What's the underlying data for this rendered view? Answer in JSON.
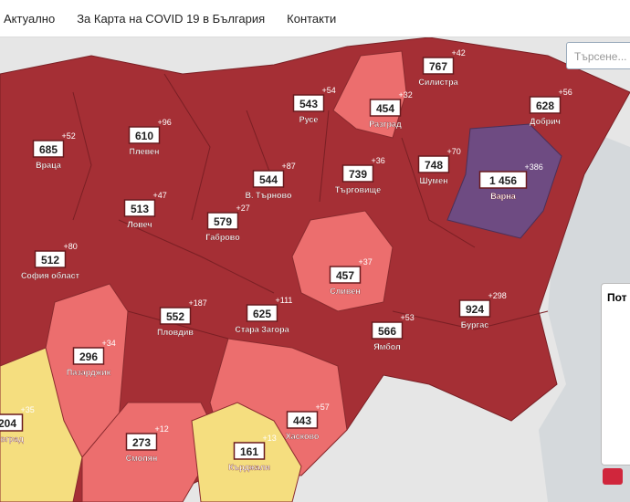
{
  "nav": {
    "items": [
      "Актуално",
      "За Карта на COVID 19 в България",
      "Контакти"
    ]
  },
  "search": {
    "placeholder": "Търсене..."
  },
  "panel": {
    "title": "Пот"
  },
  "regions": [
    {
      "name": "Силистра",
      "value": "767",
      "delta": "+42"
    },
    {
      "name": "Русе",
      "value": "543",
      "delta": "+54"
    },
    {
      "name": "Разград",
      "value": "454",
      "delta": "+32"
    },
    {
      "name": "Добрич",
      "value": "628",
      "delta": "+56"
    },
    {
      "name": "Враца",
      "value": "685",
      "delta": "+52"
    },
    {
      "name": "Плевен",
      "value": "610",
      "delta": "+96"
    },
    {
      "name": "В. Търново",
      "value": "544",
      "delta": "+87"
    },
    {
      "name": "Търговище",
      "value": "739",
      "delta": "+36"
    },
    {
      "name": "Шумен",
      "value": "748",
      "delta": "+70"
    },
    {
      "name": "Варна",
      "value": "1 456",
      "delta": "+386"
    },
    {
      "name": "Ловеч",
      "value": "513",
      "delta": "+47"
    },
    {
      "name": "Габрово",
      "value": "579",
      "delta": "+27"
    },
    {
      "name": "София област",
      "value": "512",
      "delta": "+80"
    },
    {
      "name": "Сливен",
      "value": "457",
      "delta": "+37"
    },
    {
      "name": "Бургас",
      "value": "924",
      "delta": "+298"
    },
    {
      "name": "Стара Загора",
      "value": "625",
      "delta": "+111"
    },
    {
      "name": "Пловдив",
      "value": "552",
      "delta": "+187"
    },
    {
      "name": "Ямбол",
      "value": "566",
      "delta": "+53"
    },
    {
      "name": "Пазарджик",
      "value": "296",
      "delta": "+34"
    },
    {
      "name": "Хасково",
      "value": "443",
      "delta": "+57"
    },
    {
      "name": "Смолян",
      "value": "273",
      "delta": "+12"
    },
    {
      "name": "Кърджали",
      "value": "161",
      "delta": "+13"
    },
    {
      "name": "оевград",
      "value": "204",
      "delta": "+35"
    }
  ]
}
